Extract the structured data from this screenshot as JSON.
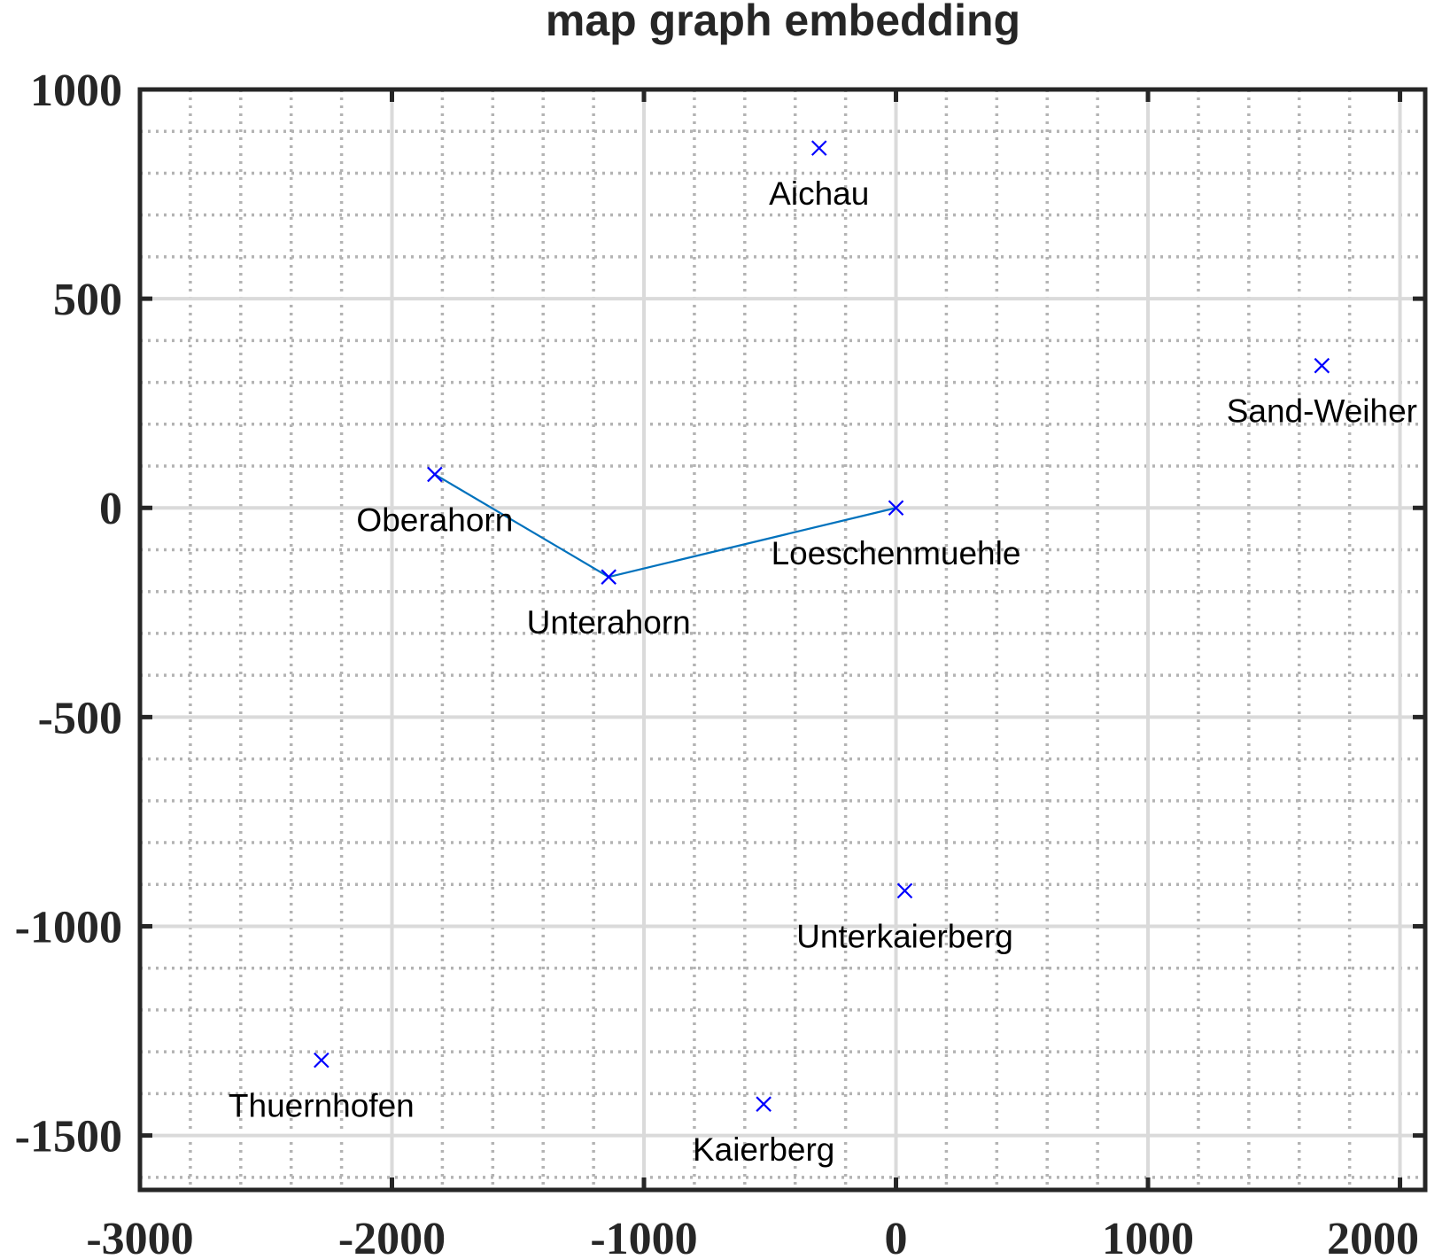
{
  "chart_data": {
    "type": "scatter",
    "title": "map graph embedding",
    "xlabel": "",
    "ylabel": "",
    "xlim": [
      -3000,
      2100
    ],
    "ylim": [
      -1630,
      1000
    ],
    "xticks": [
      -3000,
      -2000,
      -1000,
      0,
      1000,
      2000
    ],
    "xtick_labels": [
      "-3000",
      "-2000",
      "-1000",
      "0",
      "1000",
      "2000"
    ],
    "yticks": [
      1000,
      500,
      0,
      -500,
      -1000,
      -1500
    ],
    "ytick_labels": [
      "1000",
      "500",
      "0",
      "-500",
      "-1000",
      "-1500"
    ],
    "x_minor_step": 200,
    "y_minor_step": 100,
    "grid": true,
    "minor_grid": true,
    "marker": "x",
    "marker_color": "#0000ff",
    "edge_color": "#0072bd",
    "points": [
      {
        "label": "Aichau",
        "x": -305,
        "y": 860
      },
      {
        "label": "Sand-Weiher",
        "x": 1690,
        "y": 340
      },
      {
        "label": "Oberahorn",
        "x": -1830,
        "y": 80
      },
      {
        "label": "Loeschenmuehle",
        "x": 0,
        "y": 0
      },
      {
        "label": "Unterahorn",
        "x": -1140,
        "y": -165
      },
      {
        "label": "Unterkaierberg",
        "x": 35,
        "y": -915
      },
      {
        "label": "Thuernhofen",
        "x": -2280,
        "y": -1320
      },
      {
        "label": "Kaierberg",
        "x": -525,
        "y": -1425
      }
    ],
    "edges": [
      [
        "Oberahorn",
        "Unterahorn"
      ],
      [
        "Unterahorn",
        "Loeschenmuehle"
      ]
    ]
  }
}
